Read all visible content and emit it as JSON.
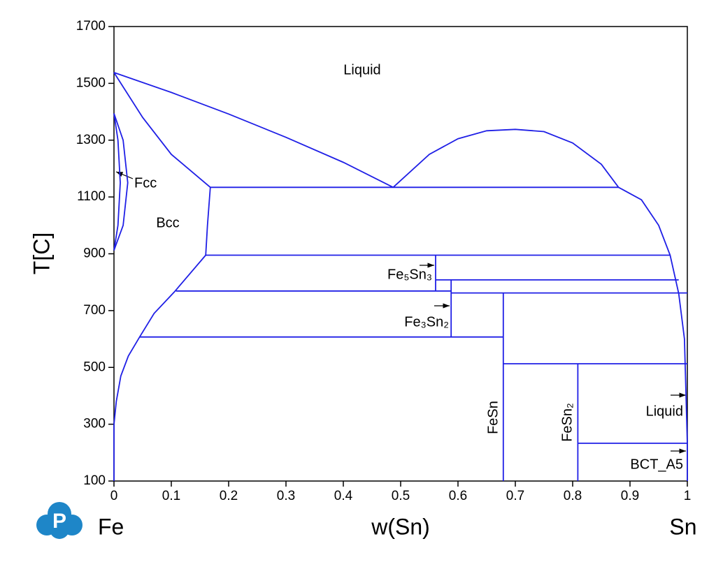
{
  "logo": "P",
  "chart_data": {
    "type": "line",
    "xlabel": "w(Sn)",
    "ylabel": "T[C]",
    "x_end_labels": [
      "Fe",
      "Sn"
    ],
    "xlim": [
      0,
      1
    ],
    "ylim": [
      100,
      1700
    ],
    "xticks": [
      0,
      0.1,
      0.2,
      0.3,
      0.4,
      0.5,
      0.6,
      0.7,
      0.8,
      0.9,
      1
    ],
    "yticks": [
      100,
      300,
      500,
      700,
      900,
      1100,
      1300,
      1500,
      1700
    ],
    "color": "#1f1fe6",
    "annotations": [
      "Liquid",
      "Fcc",
      "Bcc",
      "Fe₅Sn₃",
      "Fe₃Sn₂",
      "FeSn",
      "FeSn₂",
      "Liquid",
      "BCT_A5"
    ],
    "series": [
      {
        "x": [
          0,
          0.1,
          0.2,
          0.3,
          0.4,
          0.487
        ],
        "values": [
          1538,
          1468,
          1392,
          1310,
          1222,
          1134
        ]
      },
      {
        "x": [
          0.487,
          0.55,
          0.6,
          0.65,
          0.7,
          0.75,
          0.8,
          0.85,
          0.88
        ],
        "values": [
          1134,
          1250,
          1305,
          1333,
          1338,
          1330,
          1290,
          1215,
          1134
        ]
      },
      {
        "x": [
          0.88,
          0.92,
          0.95,
          0.97,
          0.985,
          0.995,
          1
        ],
        "values": [
          1134,
          1090,
          1000,
          895,
          760,
          600,
          232
        ]
      },
      {
        "x": [
          0,
          0.05,
          0.1,
          0.168,
          0.163,
          0.16
        ],
        "values": [
          1538,
          1380,
          1250,
          1134,
          1000,
          895
        ]
      },
      {
        "x": [
          0.16,
          0.105,
          0.07,
          0.045,
          0.025,
          0.012,
          0.004,
          0,
          0
        ],
        "values": [
          895,
          765,
          690,
          608,
          540,
          470,
          380,
          300,
          100
        ]
      },
      {
        "x": [
          0,
          0.016,
          0.024,
          0.016,
          0
        ],
        "values": [
          1394,
          1300,
          1150,
          1000,
          912
        ]
      },
      {
        "x": [
          0,
          0.007,
          0.011,
          0.007,
          0
        ],
        "values": [
          1394,
          1300,
          1150,
          1000,
          912
        ]
      },
      {
        "x": [
          0.168,
          0.88
        ],
        "values": [
          1134,
          1134
        ]
      },
      {
        "x": [
          0.16,
          0.97
        ],
        "values": [
          895,
          895
        ]
      },
      {
        "x": [
          0.561,
          0.985
        ],
        "values": [
          808,
          808
        ]
      },
      {
        "x": [
          0.108,
          0.588
        ],
        "values": [
          769,
          769
        ]
      },
      {
        "x": [
          0.588,
          1
        ],
        "values": [
          762,
          762
        ]
      },
      {
        "x": [
          0.045,
          0.679
        ],
        "values": [
          607,
          607
        ]
      },
      {
        "x": [
          0.679,
          1
        ],
        "values": [
          513,
          513
        ]
      },
      {
        "x": [
          0.809,
          1
        ],
        "values": [
          233,
          233
        ]
      },
      {
        "x": [
          0.561,
          0.561
        ],
        "values": [
          895,
          769
        ]
      },
      {
        "x": [
          0.588,
          0.588
        ],
        "values": [
          808,
          607
        ]
      },
      {
        "x": [
          0.679,
          0.679
        ],
        "values": [
          762,
          100
        ]
      },
      {
        "x": [
          0.809,
          0.809
        ],
        "values": [
          513,
          100
        ]
      },
      {
        "x": [
          1,
          1
        ],
        "values": [
          232,
          100
        ]
      }
    ]
  }
}
